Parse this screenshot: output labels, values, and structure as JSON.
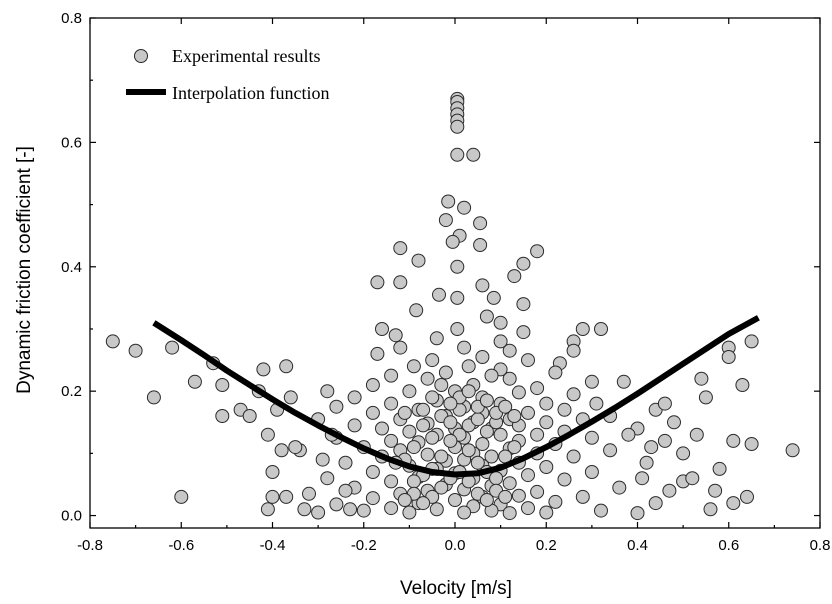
{
  "chart_data": {
    "type": "scatter",
    "xlabel": "Velocity [m/s]",
    "ylabel": "Dynamic friction coefficient [-]",
    "xlim": [
      -0.8,
      0.8
    ],
    "ylim": [
      -0.02,
      0.8
    ],
    "xticks": [
      -0.8,
      -0.6,
      -0.4,
      -0.2,
      0.0,
      0.2,
      0.4,
      0.6,
      0.8
    ],
    "xtick_labels": [
      "-0.8",
      "-0.6",
      "-0.4",
      "-0.2",
      "0.0",
      "0.2",
      "0.4",
      "0.6",
      "0.8"
    ],
    "yticks": [
      0.0,
      0.2,
      0.4,
      0.6,
      0.8
    ],
    "ytick_labels": [
      "0.0",
      "0.2",
      "0.4",
      "0.6",
      "0.8"
    ],
    "grid": false,
    "legend_position": "top-left",
    "colors": {
      "marker_fill": "#c8c8c8",
      "marker_edge": "#2a2a2a",
      "line": "#000000"
    },
    "series": [
      {
        "name": "Experimental results",
        "kind": "scatter",
        "points": [
          [
            0.005,
            0.67
          ],
          [
            0.005,
            0.665
          ],
          [
            0.005,
            0.655
          ],
          [
            0.005,
            0.645
          ],
          [
            0.005,
            0.635
          ],
          [
            0.005,
            0.625
          ],
          [
            0.005,
            0.58
          ],
          [
            0.04,
            0.58
          ],
          [
            -0.015,
            0.505
          ],
          [
            0.02,
            0.495
          ],
          [
            -0.02,
            0.475
          ],
          [
            0.055,
            0.47
          ],
          [
            0.01,
            0.45
          ],
          [
            -0.005,
            0.44
          ],
          [
            0.055,
            0.435
          ],
          [
            0.18,
            0.425
          ],
          [
            -0.12,
            0.43
          ],
          [
            0.15,
            0.405
          ],
          [
            -0.08,
            0.41
          ],
          [
            0.005,
            0.4
          ],
          [
            -0.12,
            0.375
          ],
          [
            0.13,
            0.385
          ],
          [
            -0.17,
            0.375
          ],
          [
            0.06,
            0.37
          ],
          [
            -0.035,
            0.355
          ],
          [
            0.005,
            0.35
          ],
          [
            0.085,
            0.35
          ],
          [
            0.15,
            0.34
          ],
          [
            -0.085,
            0.33
          ],
          [
            0.07,
            0.32
          ],
          [
            -0.16,
            0.3
          ],
          [
            0.1,
            0.31
          ],
          [
            0.005,
            0.3
          ],
          [
            0.32,
            0.3
          ],
          [
            -0.13,
            0.29
          ],
          [
            0.15,
            0.295
          ],
          [
            0.28,
            0.3
          ],
          [
            -0.04,
            0.285
          ],
          [
            0.1,
            0.28
          ],
          [
            0.26,
            0.28
          ],
          [
            -0.12,
            0.27
          ],
          [
            0.02,
            0.27
          ],
          [
            0.12,
            0.265
          ],
          [
            0.26,
            0.265
          ],
          [
            -0.17,
            0.26
          ],
          [
            0.06,
            0.255
          ],
          [
            -0.05,
            0.25
          ],
          [
            0.16,
            0.25
          ],
          [
            0.23,
            0.245
          ],
          [
            -0.09,
            0.24
          ],
          [
            0.03,
            0.24
          ],
          [
            0.1,
            0.235
          ],
          [
            -0.02,
            0.23
          ],
          [
            0.22,
            0.23
          ],
          [
            -0.14,
            0.225
          ],
          [
            0.08,
            0.225
          ],
          [
            -0.06,
            0.22
          ],
          [
            0.12,
            0.22
          ],
          [
            0.3,
            0.215
          ],
          [
            -0.18,
            0.21
          ],
          [
            0.04,
            0.21
          ],
          [
            0.18,
            0.205
          ],
          [
            0.37,
            0.215
          ],
          [
            -0.1,
            0.2
          ],
          [
            0.0,
            0.2
          ],
          [
            0.14,
            0.198
          ],
          [
            0.26,
            0.195
          ],
          [
            -0.22,
            0.19
          ],
          [
            0.06,
            0.19
          ],
          [
            0.31,
            0.18
          ],
          [
            -0.04,
            0.185
          ],
          [
            0.2,
            0.18
          ],
          [
            -0.14,
            0.18
          ],
          [
            0.1,
            0.18
          ],
          [
            -0.26,
            0.175
          ],
          [
            0.02,
            0.175
          ],
          [
            0.24,
            0.17
          ],
          [
            -0.08,
            0.17
          ],
          [
            0.16,
            0.165
          ],
          [
            0.44,
            0.17
          ],
          [
            -0.18,
            0.165
          ],
          [
            0.06,
            0.165
          ],
          [
            0.34,
            0.16
          ],
          [
            -0.02,
            0.16
          ],
          [
            0.12,
            0.155
          ],
          [
            -0.12,
            0.155
          ],
          [
            0.28,
            0.155
          ],
          [
            -0.3,
            0.155
          ],
          [
            0.04,
            0.15
          ],
          [
            0.2,
            0.15
          ],
          [
            -0.06,
            0.148
          ],
          [
            0.14,
            0.145
          ],
          [
            -0.22,
            0.145
          ],
          [
            0.08,
            0.14
          ],
          [
            0.4,
            0.14
          ],
          [
            -0.16,
            0.14
          ],
          [
            0.0,
            0.14
          ],
          [
            0.24,
            0.135
          ],
          [
            -0.1,
            0.135
          ],
          [
            0.18,
            0.13
          ],
          [
            -0.04,
            0.13
          ],
          [
            0.1,
            0.13
          ],
          [
            -0.26,
            0.125
          ],
          [
            0.3,
            0.125
          ],
          [
            0.02,
            0.125
          ],
          [
            -0.14,
            0.12
          ],
          [
            0.14,
            0.12
          ],
          [
            0.46,
            0.12
          ],
          [
            -0.08,
            0.118
          ],
          [
            0.06,
            0.115
          ],
          [
            0.22,
            0.115
          ],
          [
            -0.2,
            0.11
          ],
          [
            0.0,
            0.11
          ],
          [
            0.12,
            0.108
          ],
          [
            -0.12,
            0.105
          ],
          [
            0.34,
            0.105
          ],
          [
            0.04,
            0.1
          ],
          [
            -0.34,
            0.105
          ],
          [
            0.18,
            0.1
          ],
          [
            -0.06,
            0.098
          ],
          [
            0.08,
            0.095
          ],
          [
            -0.16,
            0.095
          ],
          [
            0.26,
            0.095
          ],
          [
            0.02,
            0.09
          ],
          [
            -0.02,
            0.088
          ],
          [
            0.14,
            0.085
          ],
          [
            -0.24,
            0.085
          ],
          [
            0.42,
            0.085
          ],
          [
            0.06,
            0.08
          ],
          [
            -0.1,
            0.08
          ],
          [
            0.2,
            0.078
          ],
          [
            -0.04,
            0.075
          ],
          [
            0.1,
            0.072
          ],
          [
            -0.18,
            0.07
          ],
          [
            0.3,
            0.07
          ],
          [
            0.0,
            0.068
          ],
          [
            0.16,
            0.065
          ],
          [
            -0.08,
            0.062
          ],
          [
            0.04,
            0.06
          ],
          [
            -0.28,
            0.06
          ],
          [
            0.24,
            0.058
          ],
          [
            -0.14,
            0.055
          ],
          [
            0.12,
            0.052
          ],
          [
            0.5,
            0.055
          ],
          [
            -0.02,
            0.05
          ],
          [
            0.08,
            0.048
          ],
          [
            -0.22,
            0.045
          ],
          [
            0.36,
            0.045
          ],
          [
            0.02,
            0.042
          ],
          [
            -0.06,
            0.04
          ],
          [
            0.18,
            0.038
          ],
          [
            -0.12,
            0.035
          ],
          [
            0.14,
            0.032
          ],
          [
            -0.32,
            0.035
          ],
          [
            0.06,
            0.03
          ],
          [
            0.28,
            0.03
          ],
          [
            -0.18,
            0.028
          ],
          [
            0.0,
            0.025
          ],
          [
            0.22,
            0.022
          ],
          [
            -0.08,
            0.02
          ],
          [
            0.1,
            0.018
          ],
          [
            -0.26,
            0.018
          ],
          [
            0.44,
            0.02
          ],
          [
            0.04,
            0.015
          ],
          [
            -0.14,
            0.012
          ],
          [
            0.16,
            0.012
          ],
          [
            -0.04,
            0.01
          ],
          [
            0.08,
            0.008
          ],
          [
            -0.2,
            0.008
          ],
          [
            0.32,
            0.008
          ],
          [
            0.02,
            0.005
          ],
          [
            -0.1,
            0.005
          ],
          [
            0.2,
            0.005
          ],
          [
            -0.3,
            0.005
          ],
          [
            0.12,
            0.004
          ],
          [
            0.4,
            0.004
          ],
          [
            -0.03,
            0.16
          ],
          [
            -0.01,
            0.15
          ],
          [
            0.01,
            0.17
          ],
          [
            0.03,
            0.145
          ],
          [
            0.05,
            0.155
          ],
          [
            0.07,
            0.135
          ],
          [
            -0.05,
            0.125
          ],
          [
            -0.07,
            0.145
          ],
          [
            0.09,
            0.15
          ],
          [
            -0.09,
            0.11
          ],
          [
            0.11,
            0.095
          ],
          [
            -0.11,
            0.09
          ],
          [
            0.13,
            0.11
          ],
          [
            -0.13,
            0.085
          ],
          [
            0.01,
            0.13
          ],
          [
            -0.01,
            0.12
          ],
          [
            0.03,
            0.105
          ],
          [
            -0.03,
            0.095
          ],
          [
            0.05,
            0.085
          ],
          [
            -0.05,
            0.075
          ],
          [
            0.07,
            0.07
          ],
          [
            -0.07,
            0.065
          ],
          [
            0.09,
            0.06
          ],
          [
            -0.09,
            0.055
          ],
          [
            0.01,
            0.19
          ],
          [
            -0.01,
            0.18
          ],
          [
            0.03,
            0.2
          ],
          [
            -0.03,
            0.21
          ],
          [
            0.05,
            0.175
          ],
          [
            -0.05,
            0.19
          ],
          [
            0.07,
            0.185
          ],
          [
            -0.07,
            0.17
          ],
          [
            0.09,
            0.165
          ],
          [
            0.11,
            0.175
          ],
          [
            -0.11,
            0.165
          ],
          [
            0.13,
            0.16
          ],
          [
            0.01,
            0.07
          ],
          [
            -0.01,
            0.06
          ],
          [
            0.03,
            0.055
          ],
          [
            -0.03,
            0.045
          ],
          [
            0.05,
            0.035
          ],
          [
            -0.05,
            0.03
          ],
          [
            0.07,
            0.025
          ],
          [
            -0.07,
            0.02
          ],
          [
            0.09,
            0.04
          ],
          [
            -0.09,
            0.035
          ],
          [
            0.11,
            0.03
          ],
          [
            -0.11,
            0.025
          ],
          [
            -0.75,
            0.28
          ],
          [
            -0.7,
            0.265
          ],
          [
            -0.66,
            0.19
          ],
          [
            -0.62,
            0.27
          ],
          [
            -0.6,
            0.03
          ],
          [
            -0.57,
            0.215
          ],
          [
            -0.53,
            0.245
          ],
          [
            -0.51,
            0.21
          ],
          [
            -0.51,
            0.16
          ],
          [
            -0.47,
            0.17
          ],
          [
            -0.45,
            0.16
          ],
          [
            -0.43,
            0.2
          ],
          [
            -0.42,
            0.235
          ],
          [
            -0.41,
            0.13
          ],
          [
            -0.4,
            0.07
          ],
          [
            -0.39,
            0.17
          ],
          [
            -0.38,
            0.105
          ],
          [
            -0.37,
            0.24
          ],
          [
            -0.36,
            0.19
          ],
          [
            -0.35,
            0.11
          ],
          [
            -0.4,
            0.03
          ],
          [
            -0.41,
            0.01
          ],
          [
            -0.37,
            0.03
          ],
          [
            -0.33,
            0.01
          ],
          [
            -0.29,
            0.09
          ],
          [
            -0.28,
            0.2
          ],
          [
            -0.27,
            0.13
          ],
          [
            -0.24,
            0.04
          ],
          [
            -0.23,
            0.01
          ],
          [
            0.5,
            0.1
          ],
          [
            0.52,
            0.06
          ],
          [
            0.53,
            0.13
          ],
          [
            0.54,
            0.22
          ],
          [
            0.55,
            0.19
          ],
          [
            0.56,
            0.01
          ],
          [
            0.57,
            0.04
          ],
          [
            0.58,
            0.075
          ],
          [
            0.6,
            0.27
          ],
          [
            0.6,
            0.255
          ],
          [
            0.61,
            0.12
          ],
          [
            0.61,
            0.02
          ],
          [
            0.63,
            0.21
          ],
          [
            0.64,
            0.03
          ],
          [
            0.65,
            0.115
          ],
          [
            0.65,
            0.28
          ],
          [
            0.74,
            0.105
          ],
          [
            0.46,
            0.18
          ],
          [
            0.47,
            0.04
          ],
          [
            0.48,
            0.15
          ],
          [
            0.43,
            0.11
          ],
          [
            0.41,
            0.06
          ],
          [
            0.38,
            0.13
          ]
        ]
      },
      {
        "name": "Interpolation function",
        "kind": "line",
        "points": [
          [
            -0.66,
            0.31
          ],
          [
            -0.6,
            0.282
          ],
          [
            -0.55,
            0.258
          ],
          [
            -0.5,
            0.233
          ],
          [
            -0.45,
            0.21
          ],
          [
            -0.4,
            0.187
          ],
          [
            -0.35,
            0.165
          ],
          [
            -0.3,
            0.145
          ],
          [
            -0.25,
            0.126
          ],
          [
            -0.2,
            0.108
          ],
          [
            -0.15,
            0.092
          ],
          [
            -0.1,
            0.079
          ],
          [
            -0.05,
            0.07
          ],
          [
            0.0,
            0.066
          ],
          [
            0.05,
            0.068
          ],
          [
            0.1,
            0.077
          ],
          [
            0.15,
            0.092
          ],
          [
            0.2,
            0.11
          ],
          [
            0.25,
            0.13
          ],
          [
            0.3,
            0.151
          ],
          [
            0.35,
            0.173
          ],
          [
            0.4,
            0.196
          ],
          [
            0.45,
            0.22
          ],
          [
            0.5,
            0.244
          ],
          [
            0.55,
            0.268
          ],
          [
            0.6,
            0.292
          ],
          [
            0.665,
            0.318
          ]
        ]
      }
    ]
  }
}
